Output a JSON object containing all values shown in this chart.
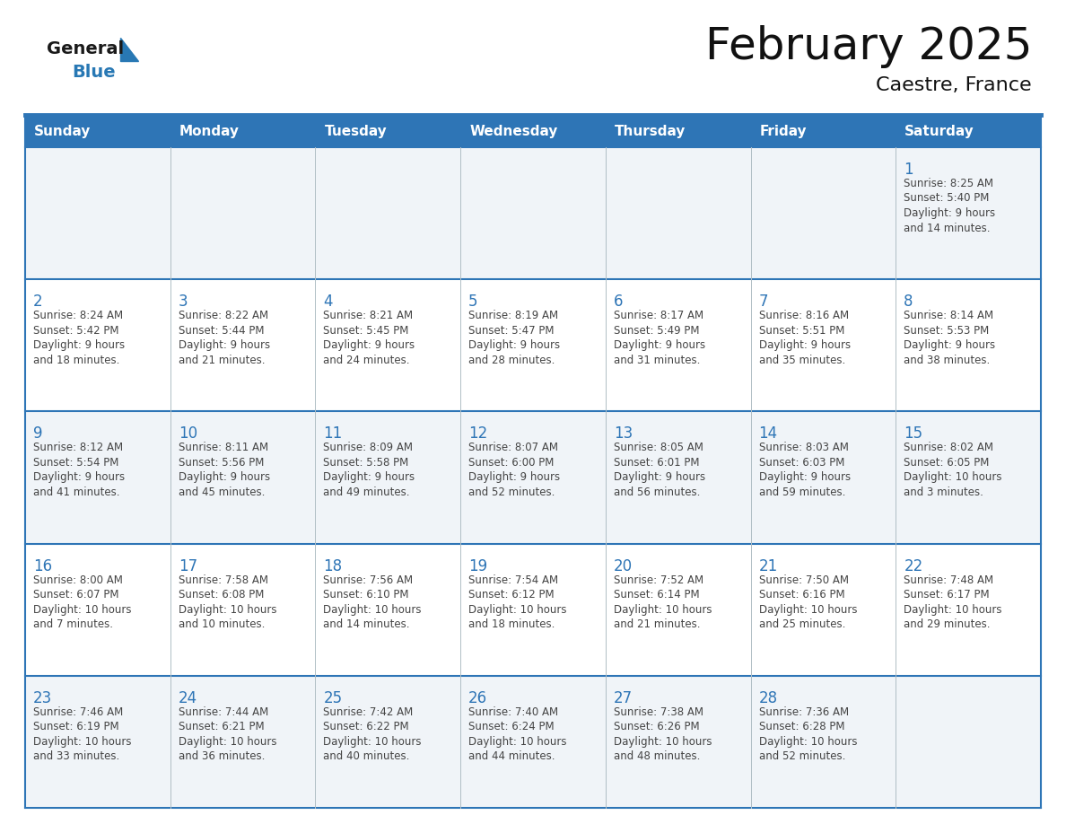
{
  "title": "February 2025",
  "subtitle": "Caestre, France",
  "days_of_week": [
    "Sunday",
    "Monday",
    "Tuesday",
    "Wednesday",
    "Thursday",
    "Friday",
    "Saturday"
  ],
  "header_bg": "#2E75B6",
  "header_text": "#FFFFFF",
  "row_bg_light": "#F0F4F8",
  "row_bg_white": "#FFFFFF",
  "day_number_color": "#2E75B6",
  "text_color": "#444444",
  "border_color": "#2E75B6",
  "logo_general_color": "#1A1A1A",
  "logo_blue_color": "#2878B4",
  "calendar_data": [
    [
      null,
      null,
      null,
      null,
      null,
      null,
      {
        "day": 1,
        "sunrise": "8:25 AM",
        "sunset": "5:40 PM",
        "daylight": "9 hours and 14 minutes."
      }
    ],
    [
      {
        "day": 2,
        "sunrise": "8:24 AM",
        "sunset": "5:42 PM",
        "daylight": "9 hours and 18 minutes."
      },
      {
        "day": 3,
        "sunrise": "8:22 AM",
        "sunset": "5:44 PM",
        "daylight": "9 hours and 21 minutes."
      },
      {
        "day": 4,
        "sunrise": "8:21 AM",
        "sunset": "5:45 PM",
        "daylight": "9 hours and 24 minutes."
      },
      {
        "day": 5,
        "sunrise": "8:19 AM",
        "sunset": "5:47 PM",
        "daylight": "9 hours and 28 minutes."
      },
      {
        "day": 6,
        "sunrise": "8:17 AM",
        "sunset": "5:49 PM",
        "daylight": "9 hours and 31 minutes."
      },
      {
        "day": 7,
        "sunrise": "8:16 AM",
        "sunset": "5:51 PM",
        "daylight": "9 hours and 35 minutes."
      },
      {
        "day": 8,
        "sunrise": "8:14 AM",
        "sunset": "5:53 PM",
        "daylight": "9 hours and 38 minutes."
      }
    ],
    [
      {
        "day": 9,
        "sunrise": "8:12 AM",
        "sunset": "5:54 PM",
        "daylight": "9 hours and 41 minutes."
      },
      {
        "day": 10,
        "sunrise": "8:11 AM",
        "sunset": "5:56 PM",
        "daylight": "9 hours and 45 minutes."
      },
      {
        "day": 11,
        "sunrise": "8:09 AM",
        "sunset": "5:58 PM",
        "daylight": "9 hours and 49 minutes."
      },
      {
        "day": 12,
        "sunrise": "8:07 AM",
        "sunset": "6:00 PM",
        "daylight": "9 hours and 52 minutes."
      },
      {
        "day": 13,
        "sunrise": "8:05 AM",
        "sunset": "6:01 PM",
        "daylight": "9 hours and 56 minutes."
      },
      {
        "day": 14,
        "sunrise": "8:03 AM",
        "sunset": "6:03 PM",
        "daylight": "9 hours and 59 minutes."
      },
      {
        "day": 15,
        "sunrise": "8:02 AM",
        "sunset": "6:05 PM",
        "daylight": "10 hours and 3 minutes."
      }
    ],
    [
      {
        "day": 16,
        "sunrise": "8:00 AM",
        "sunset": "6:07 PM",
        "daylight": "10 hours and 7 minutes."
      },
      {
        "day": 17,
        "sunrise": "7:58 AM",
        "sunset": "6:08 PM",
        "daylight": "10 hours and 10 minutes."
      },
      {
        "day": 18,
        "sunrise": "7:56 AM",
        "sunset": "6:10 PM",
        "daylight": "10 hours and 14 minutes."
      },
      {
        "day": 19,
        "sunrise": "7:54 AM",
        "sunset": "6:12 PM",
        "daylight": "10 hours and 18 minutes."
      },
      {
        "day": 20,
        "sunrise": "7:52 AM",
        "sunset": "6:14 PM",
        "daylight": "10 hours and 21 minutes."
      },
      {
        "day": 21,
        "sunrise": "7:50 AM",
        "sunset": "6:16 PM",
        "daylight": "10 hours and 25 minutes."
      },
      {
        "day": 22,
        "sunrise": "7:48 AM",
        "sunset": "6:17 PM",
        "daylight": "10 hours and 29 minutes."
      }
    ],
    [
      {
        "day": 23,
        "sunrise": "7:46 AM",
        "sunset": "6:19 PM",
        "daylight": "10 hours and 33 minutes."
      },
      {
        "day": 24,
        "sunrise": "7:44 AM",
        "sunset": "6:21 PM",
        "daylight": "10 hours and 36 minutes."
      },
      {
        "day": 25,
        "sunrise": "7:42 AM",
        "sunset": "6:22 PM",
        "daylight": "10 hours and 40 minutes."
      },
      {
        "day": 26,
        "sunrise": "7:40 AM",
        "sunset": "6:24 PM",
        "daylight": "10 hours and 44 minutes."
      },
      {
        "day": 27,
        "sunrise": "7:38 AM",
        "sunset": "6:26 PM",
        "daylight": "10 hours and 48 minutes."
      },
      {
        "day": 28,
        "sunrise": "7:36 AM",
        "sunset": "6:28 PM",
        "daylight": "10 hours and 52 minutes."
      },
      null
    ]
  ]
}
